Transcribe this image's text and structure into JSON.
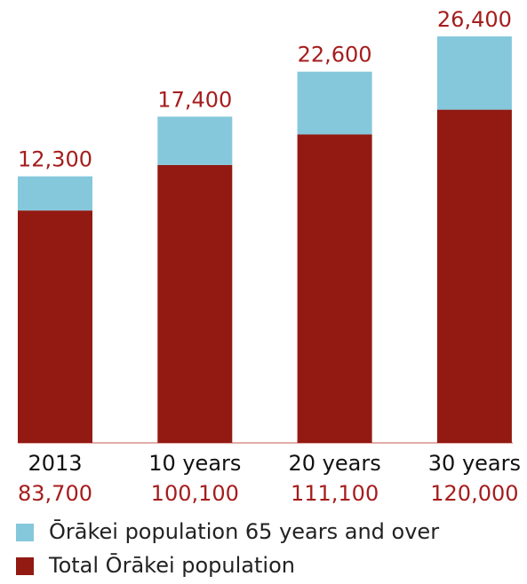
{
  "chart_data": {
    "type": "bar",
    "stacked": true,
    "categories": [
      "2013",
      "10 years",
      "20 years",
      "30 years"
    ],
    "series": [
      {
        "name": "Total Ōrākei population",
        "color": "#921a12",
        "values": [
          83700,
          100100,
          111100,
          120000
        ],
        "value_labels": [
          "83,700",
          "100,100",
          "111,100",
          "120,000"
        ]
      },
      {
        "name": "Ōrākei population 65 years and over",
        "color": "#85c8dc",
        "values": [
          12300,
          17400,
          22600,
          26400
        ],
        "value_labels": [
          "12,300",
          "17,400",
          "22,600",
          "26,400"
        ]
      }
    ],
    "legend": "bottom-left"
  }
}
